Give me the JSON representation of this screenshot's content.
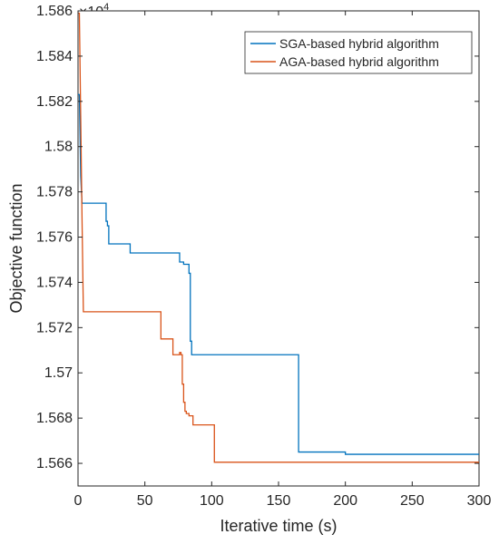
{
  "chart_data": {
    "type": "line",
    "xlabel": "Iterative time (s)",
    "ylabel": "Objective function",
    "xlim": [
      0,
      300
    ],
    "ylim": [
      1.565,
      1.586
    ],
    "xticks": [
      0,
      50,
      100,
      150,
      200,
      250,
      300
    ],
    "xtick_labels": [
      "0",
      "50",
      "100",
      "150",
      "200",
      "250",
      "300"
    ],
    "yticks": [
      1.566,
      1.568,
      1.57,
      1.572,
      1.574,
      1.576,
      1.578,
      1.58,
      1.582,
      1.584,
      1.586
    ],
    "ytick_labels": [
      "1.566",
      "1.568",
      "1.57",
      "1.572",
      "1.574",
      "1.576",
      "1.578",
      "1.58",
      "1.582",
      "1.584",
      "1.586"
    ],
    "y_multiplier": {
      "base": "×10",
      "exponent": "4"
    },
    "grid": false,
    "legend_position": "top-right",
    "series": [
      {
        "name": "SGA-based hybrid algorithm",
        "color": "#0072BD",
        "step": true,
        "points": [
          [
            0,
            1.5823
          ],
          [
            1,
            1.5823
          ],
          [
            2,
            1.5787
          ],
          [
            3,
            1.5775
          ],
          [
            21,
            1.5775
          ],
          [
            21,
            1.5767
          ],
          [
            22,
            1.5767
          ],
          [
            22,
            1.5765
          ],
          [
            23,
            1.5765
          ],
          [
            23,
            1.5757
          ],
          [
            39,
            1.5757
          ],
          [
            39,
            1.5753
          ],
          [
            76,
            1.5753
          ],
          [
            76,
            1.5749
          ],
          [
            79,
            1.5749
          ],
          [
            79,
            1.5748
          ],
          [
            83,
            1.5748
          ],
          [
            83,
            1.5744
          ],
          [
            84,
            1.5744
          ],
          [
            84,
            1.5714
          ],
          [
            85,
            1.5714
          ],
          [
            85,
            1.5708
          ],
          [
            165,
            1.5708
          ],
          [
            165,
            1.5665
          ],
          [
            200,
            1.5665
          ],
          [
            200,
            1.5664
          ],
          [
            300,
            1.5664
          ]
        ]
      },
      {
        "name": "AGA-based hybrid algorithm",
        "color": "#D95319",
        "step": true,
        "points": [
          [
            0,
            1.5859
          ],
          [
            1,
            1.5859
          ],
          [
            3,
            1.5768
          ],
          [
            4,
            1.5727
          ],
          [
            62,
            1.5727
          ],
          [
            62,
            1.5715
          ],
          [
            71,
            1.5715
          ],
          [
            71,
            1.5708
          ],
          [
            76,
            1.5708
          ],
          [
            76,
            1.5709
          ],
          [
            77,
            1.5709
          ],
          [
            77,
            1.5708
          ],
          [
            78,
            1.5708
          ],
          [
            78,
            1.5695
          ],
          [
            79,
            1.5695
          ],
          [
            79,
            1.5687
          ],
          [
            80,
            1.5687
          ],
          [
            80,
            1.5683
          ],
          [
            81,
            1.5683
          ],
          [
            81,
            1.5682
          ],
          [
            83,
            1.5682
          ],
          [
            83,
            1.5681
          ],
          [
            86,
            1.5681
          ],
          [
            86,
            1.5677
          ],
          [
            102,
            1.5677
          ],
          [
            102,
            1.56605
          ],
          [
            300,
            1.56605
          ]
        ]
      }
    ]
  }
}
